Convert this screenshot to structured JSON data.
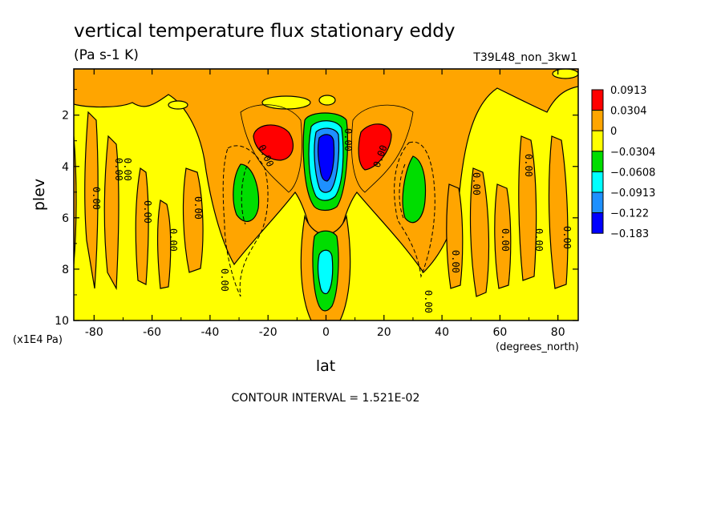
{
  "chart_data": {
    "type": "heatmap",
    "title": "vertical temperature flux stationary eddy",
    "subtitle": "(Pa s-1 K)",
    "run_label": "T39L48_non_3kw1",
    "xlabel": "lat",
    "ylabel": "plev",
    "x_unit": "(degrees_north)",
    "y_unit": "(x1E4 Pa)",
    "xlim": [
      -87,
      87
    ],
    "ylim": [
      10,
      0.2
    ],
    "x_ticks": [
      -80,
      -60,
      -40,
      -20,
      0,
      20,
      40,
      60,
      80
    ],
    "x_tick_labels": [
      "-80",
      "-60",
      "-40",
      "-20",
      "0",
      "20",
      "40",
      "60",
      "80"
    ],
    "y_ticks": [
      2,
      4,
      6,
      8,
      10
    ],
    "y_tick_labels": [
      "2",
      "4",
      "6",
      "8",
      "10"
    ],
    "contour_interval_text": "CONTOUR INTERVAL = 1.521E-02",
    "contour_label": "0.00",
    "legend": {
      "position": "right",
      "levels": [
        "0.0913",
        "0.0304",
        "0",
        "−0.0304",
        "−0.0608",
        "−0.0913",
        "−0.122",
        "−0.183"
      ],
      "colors": [
        "#ff0000",
        "#ffa500",
        "#ffff00",
        "#00dd00",
        "#00ffff",
        "#1e90ff",
        "#0000ff"
      ]
    },
    "regions": [
      {
        "kind": "positive",
        "center_lat": -20,
        "center_plev": 3.0,
        "value": 0.0913
      },
      {
        "kind": "positive",
        "center_lat": 18,
        "center_plev": 3.0,
        "value": 0.0913
      },
      {
        "kind": "negative",
        "center_lat": 0,
        "center_plev": 3.9,
        "value": -0.183
      },
      {
        "kind": "negative",
        "center_lat": 0,
        "center_plev": 8.0,
        "value": -0.122
      },
      {
        "kind": "negative",
        "center_lat": -27,
        "center_plev": 5.0,
        "value": -0.0608
      },
      {
        "kind": "negative",
        "center_lat": 29,
        "center_plev": 5.0,
        "value": -0.0608
      }
    ]
  }
}
